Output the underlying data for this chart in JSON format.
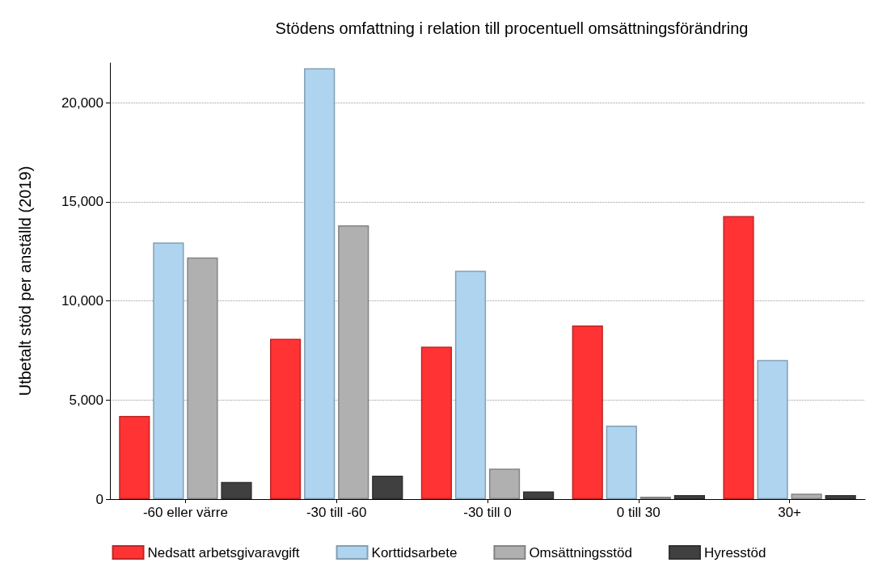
{
  "chart_data": {
    "type": "bar",
    "title": "Stödens omfattning i relation till procentuell omsättningsförändring",
    "ylabel": "Utbetalt stöd per anställd (2019)",
    "categories": [
      "-60 eller värre",
      "-30 till -60",
      "-30 till 0",
      "0 till 30",
      "30+"
    ],
    "series": [
      {
        "name": "Nedsatt arbetsgivaravgift",
        "color": "#ff3333",
        "values": [
          4200,
          8090,
          7690,
          8760,
          14280
        ]
      },
      {
        "name": "Korttidsarbete",
        "color": "#aed4f0",
        "values": [
          12950,
          21740,
          11520,
          3710,
          7020
        ]
      },
      {
        "name": "Omsättningsstöd",
        "color": "#b0b0b0",
        "values": [
          12190,
          13810,
          1540,
          120,
          280
        ]
      },
      {
        "name": "Hyresstöd",
        "color": "#404040",
        "values": [
          870,
          1180,
          390,
          200,
          200
        ]
      }
    ],
    "ylim": [
      0,
      22000
    ],
    "yticks": [
      0,
      {
        "value": 5000,
        "label": "5,000"
      },
      {
        "value": 10000,
        "label": "10,000"
      },
      {
        "value": 15000,
        "label": "15,000"
      },
      {
        "value": 20000,
        "label": "20,000"
      }
    ],
    "grid": "y",
    "legend": "bottom"
  }
}
